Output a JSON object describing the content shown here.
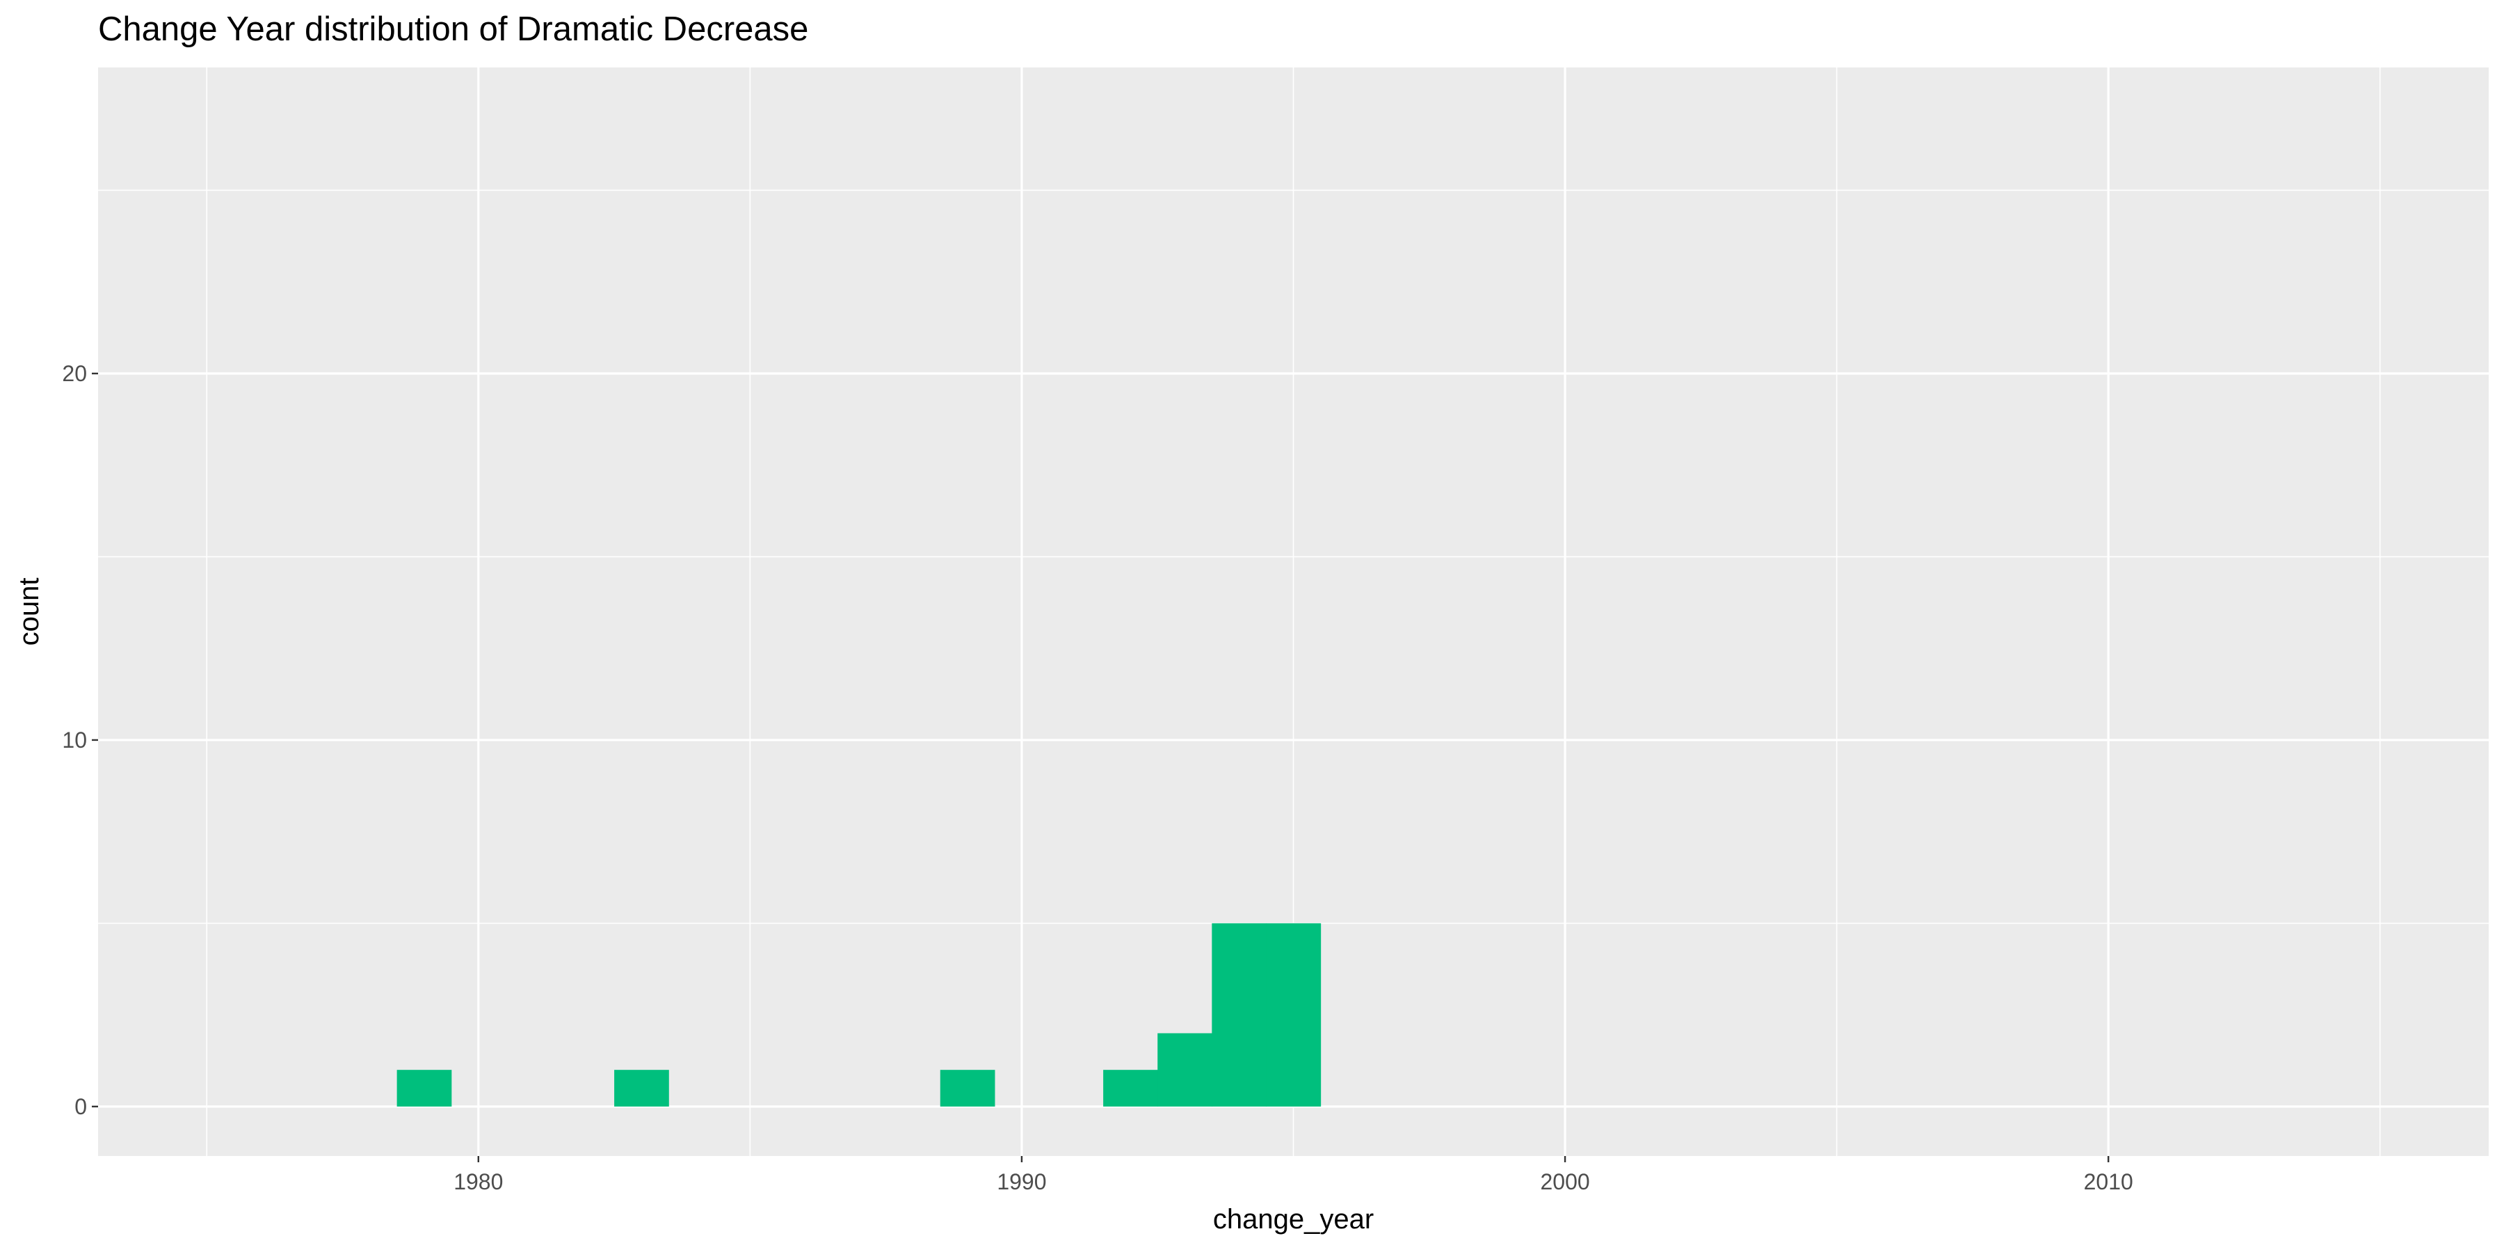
{
  "chart_data": {
    "type": "bar",
    "title": "Change Year distribution of Dramatic Decrease",
    "xlabel": "change_year",
    "ylabel": "count",
    "xlim": [
      1973,
      2017
    ],
    "ylim": [
      -1.35,
      28.35
    ],
    "x_ticks": [
      1980,
      1990,
      2000,
      2010
    ],
    "x_minor_ticks": [
      1975,
      1985,
      1995,
      2005,
      2015
    ],
    "y_ticks": [
      0,
      10,
      20
    ],
    "y_minor_ticks": [
      5,
      15,
      25
    ],
    "bin_width": 1,
    "bars": [
      {
        "x": 1979,
        "value": 1
      },
      {
        "x": 1983,
        "value": 1
      },
      {
        "x": 1989,
        "value": 1
      },
      {
        "x": 1992,
        "value": 1
      },
      {
        "x": 1993,
        "value": 2
      },
      {
        "x": 1994,
        "value": 5
      },
      {
        "x": 1995,
        "value": 5
      }
    ],
    "bar_color": "#00BF7D",
    "panel_background": "#EBEBEB",
    "grid": true,
    "legend": "none"
  }
}
